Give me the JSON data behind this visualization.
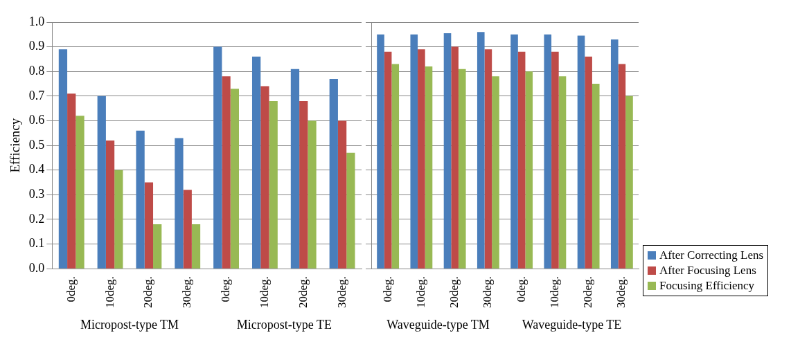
{
  "chart_data": [
    {
      "type": "bar",
      "ylabel": "Efficiency",
      "categories": [
        "0deg.",
        "10deg.",
        "20deg.",
        "30deg.",
        "0deg.",
        "10deg.",
        "20deg.",
        "30deg."
      ],
      "annotations": [
        "Micropost-type TM",
        "Micropost-type TE"
      ],
      "ylim": [
        0,
        1
      ],
      "yticks": [
        {
          "value": 0,
          "label": "0.0"
        },
        0.1,
        0.2,
        0.3,
        0.4,
        0.5,
        0.6,
        0.7,
        0.8,
        0.9,
        {
          "value": 1,
          "label": "1.0"
        }
      ],
      "grid": "y",
      "series": [
        {
          "color": "#4a7ebb",
          "values": [
            0.89,
            0.7,
            0.56,
            0.53,
            0.9,
            0.86,
            0.81,
            0.77
          ]
        },
        {
          "color": "#be4b48",
          "values": [
            0.71,
            0.52,
            0.35,
            0.32,
            0.78,
            0.74,
            0.68,
            0.6
          ]
        },
        {
          "color": "#98b954",
          "values": [
            0.62,
            0.4,
            0.18,
            0.18,
            0.73,
            0.68,
            0.6,
            0.47
          ]
        }
      ]
    },
    {
      "type": "bar",
      "categories": [
        "0deg.",
        "10deg.",
        "20deg.",
        "30deg.",
        "0deg.",
        "10deg.",
        "20deg.",
        "30deg."
      ],
      "annotations": [
        "Waveguide-type TM",
        "Waveguide-type TE"
      ],
      "ylim": [
        0,
        1
      ],
      "yticks": [
        0,
        0.1,
        0.2,
        0.3,
        0.4,
        0.5,
        0.6,
        0.7,
        0.8,
        0.9,
        1
      ],
      "grid": "y",
      "tick_labels": "x",
      "legend": "right bottom",
      "series": [
        {
          "name": "After Correcting Lens",
          "color": "#4a7ebb",
          "values": [
            0.95,
            0.95,
            0.955,
            0.96,
            0.95,
            0.95,
            0.945,
            0.93
          ]
        },
        {
          "name": "After Focusing Lens",
          "color": "#be4b48",
          "values": [
            0.88,
            0.89,
            0.9,
            0.89,
            0.88,
            0.88,
            0.86,
            0.83
          ]
        },
        {
          "name": "Focusing Efficiency",
          "color": "#98b954",
          "values": [
            0.83,
            0.82,
            0.81,
            0.78,
            0.8,
            0.78,
            0.75,
            0.7
          ]
        }
      ]
    }
  ]
}
